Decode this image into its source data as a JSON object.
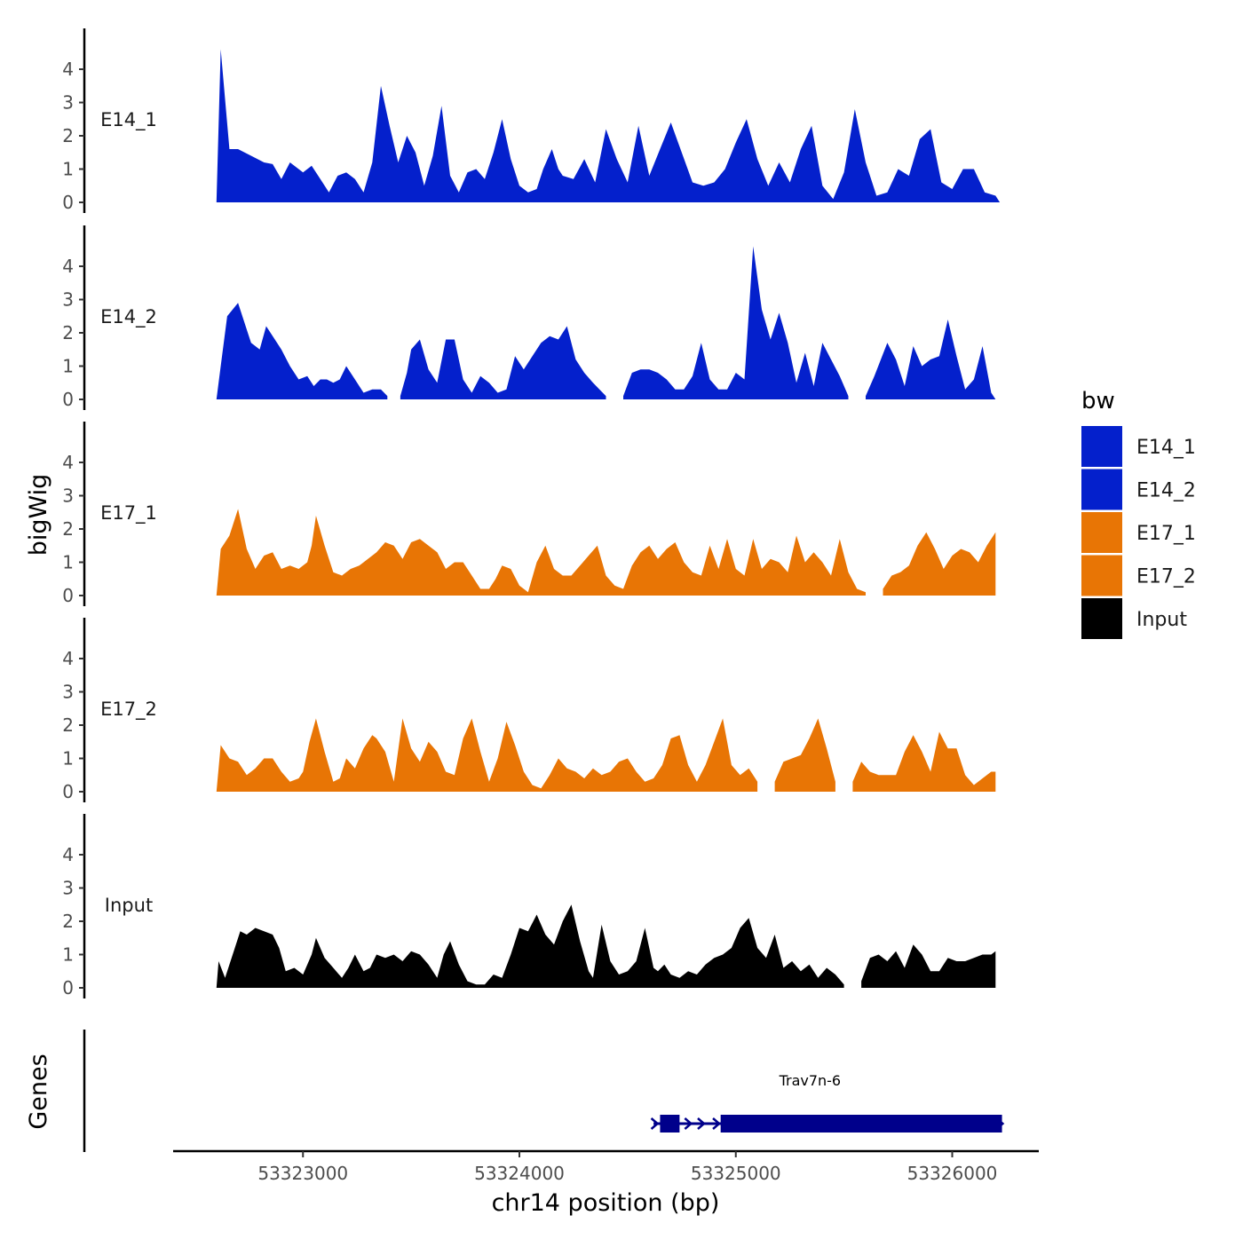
{
  "chart_data": {
    "type": "area",
    "y_axis_title": "bigWig",
    "gene_axis_title": "Genes",
    "x_axis_title": "chr14 position (bp)",
    "xlim": [
      53322400,
      53326400
    ],
    "ylim": [
      0,
      4.8
    ],
    "y_ticks": [
      0,
      1,
      2,
      3,
      4
    ],
    "x_ticks": [
      {
        "value": 53323000,
        "label": "53323000"
      },
      {
        "value": 53324000,
        "label": "53324000"
      },
      {
        "value": 53325000,
        "label": "53325000"
      },
      {
        "value": 53326000,
        "label": "53326000"
      }
    ],
    "legend": {
      "title": "bw",
      "position": "right",
      "entries": [
        {
          "label": "E14_1",
          "color": "#0420CC"
        },
        {
          "label": "E14_2",
          "color": "#0420CC"
        },
        {
          "label": "E17_1",
          "color": "#E87505"
        },
        {
          "label": "E17_2",
          "color": "#E87505"
        },
        {
          "label": "Input",
          "color": "#000000"
        }
      ]
    },
    "series": [
      {
        "name": "E14_1",
        "label": "E14_1",
        "color": "#0420CC",
        "x": [
          53322600,
          53322620,
          53322660,
          53322700,
          53322760,
          53322820,
          53322860,
          53322900,
          53322940,
          53323000,
          53323040,
          53323080,
          53323120,
          53323160,
          53323200,
          53323240,
          53323280,
          53323320,
          53323360,
          53323400,
          53323440,
          53323480,
          53323520,
          53323560,
          53323600,
          53323640,
          53323680,
          53323720,
          53323760,
          53323800,
          53323840,
          53323880,
          53323920,
          53323960,
          53324000,
          53324040,
          53324080,
          53324110,
          53324150,
          53324180,
          53324200,
          53324250,
          53324300,
          53324350,
          53324400,
          53324450,
          53324500,
          53324550,
          53324600,
          53324650,
          53324700,
          53324750,
          53324800,
          53324850,
          53324900,
          53324950,
          53325000,
          53325050,
          53325100,
          53325150,
          53325200,
          53325250,
          53325300,
          53325350,
          53325400,
          53325450,
          53325500,
          53325550,
          53325600,
          53325650,
          53325700,
          53325750,
          53325800,
          53325850,
          53325900,
          53325950,
          53326000,
          53326050,
          53326100,
          53326150,
          53326200,
          53326220
        ],
        "values": [
          0,
          4.6,
          1.6,
          1.6,
          1.4,
          1.2,
          1.15,
          0.7,
          1.2,
          0.9,
          1.1,
          0.7,
          0.3,
          0.8,
          0.9,
          0.7,
          0.3,
          1.2,
          3.5,
          2.3,
          1.2,
          2.0,
          1.5,
          0.5,
          1.4,
          2.9,
          0.8,
          0.3,
          0.9,
          1.0,
          0.7,
          1.5,
          2.5,
          1.3,
          0.5,
          0.3,
          0.4,
          1.0,
          1.6,
          1.0,
          0.8,
          0.7,
          1.3,
          0.6,
          2.2,
          1.3,
          0.6,
          2.3,
          0.8,
          1.6,
          2.4,
          1.5,
          0.6,
          0.5,
          0.6,
          1.0,
          1.8,
          2.5,
          1.3,
          0.5,
          1.2,
          0.6,
          1.6,
          2.3,
          0.5,
          0.1,
          0.9,
          2.8,
          1.2,
          0.2,
          0.3,
          1.0,
          0.8,
          1.9,
          2.2,
          0.6,
          0.4,
          1.0,
          1.0,
          0.3,
          0.2,
          0
        ]
      },
      {
        "name": "E14_2",
        "label": "E14_2",
        "color": "#0420CC",
        "x": [
          53322600,
          53322620,
          53322650,
          53322700,
          53322760,
          53322800,
          53322830,
          53322870,
          53322900,
          53322940,
          53322980,
          53323020,
          53323050,
          53323080,
          53323110,
          53323140,
          53323170,
          53323200,
          53323240,
          53323280,
          53323320,
          53323360,
          53323390,
          53323420,
          53323450,
          53323480,
          53323500,
          53323540,
          53323580,
          53323620,
          53323660,
          53323700,
          53323740,
          53323780,
          53323820,
          53323860,
          53323900,
          53323940,
          53323980,
          53324020,
          53324060,
          53324100,
          53324140,
          53324180,
          53324220,
          53324260,
          53324300,
          53324340,
          53324370,
          53324400,
          53324440,
          53324480,
          53324520,
          53324560,
          53324600,
          53324640,
          53324680,
          53324720,
          53324760,
          53324800,
          53324840,
          53324880,
          53324920,
          53324960,
          53325000,
          53325040,
          53325080,
          53325120,
          53325160,
          53325200,
          53325240,
          53325280,
          53325320,
          53325360,
          53325400,
          53325440,
          53325480,
          53325520,
          53325560,
          53325600,
          53325640,
          53325700,
          53325740,
          53325780,
          53325820,
          53325860,
          53325900,
          53325940,
          53325980,
          53326020,
          53326060,
          53326100,
          53326140,
          53326180,
          53326200
        ],
        "values": [
          0,
          1.0,
          2.5,
          2.9,
          1.7,
          1.5,
          2.2,
          1.8,
          1.5,
          1.0,
          0.6,
          0.7,
          0.4,
          0.6,
          0.6,
          0.5,
          0.6,
          1.0,
          0.6,
          0.2,
          0.3,
          0.3,
          0.1,
          null,
          0.1,
          0.8,
          1.5,
          1.8,
          0.9,
          0.5,
          1.8,
          1.8,
          0.6,
          0.2,
          0.7,
          0.5,
          0.2,
          0.3,
          1.3,
          0.9,
          1.3,
          1.7,
          1.9,
          1.8,
          2.2,
          1.2,
          0.8,
          0.5,
          0.3,
          0.1,
          null,
          0.1,
          0.8,
          0.9,
          0.9,
          0.8,
          0.6,
          0.3,
          0.3,
          0.7,
          1.7,
          0.6,
          0.3,
          0.3,
          0.8,
          0.6,
          4.6,
          2.7,
          1.8,
          2.6,
          1.7,
          0.5,
          1.4,
          0.4,
          1.7,
          1.2,
          0.7,
          0.1,
          null,
          0.1,
          0.7,
          1.7,
          1.2,
          0.4,
          1.6,
          1.0,
          1.2,
          1.3,
          2.4,
          1.3,
          0.3,
          0.6,
          1.6,
          0.2,
          0
        ]
      },
      {
        "name": "E17_1",
        "label": "E17_1",
        "color": "#E87505",
        "x": [
          53322600,
          53322620,
          53322660,
          53322700,
          53322740,
          53322780,
          53322820,
          53322860,
          53322900,
          53322940,
          53322980,
          53323020,
          53323040,
          53323060,
          53323100,
          53323140,
          53323180,
          53323220,
          53323260,
          53323300,
          53323340,
          53323380,
          53323420,
          53323460,
          53323500,
          53323540,
          53323580,
          53323620,
          53323660,
          53323700,
          53323740,
          53323780,
          53323820,
          53323860,
          53323890,
          53323920,
          53323960,
          53324000,
          53324040,
          53324080,
          53324120,
          53324160,
          53324200,
          53324240,
          53324280,
          53324320,
          53324360,
          53324400,
          53324440,
          53324480,
          53324520,
          53324560,
          53324600,
          53324640,
          53324680,
          53324720,
          53324760,
          53324800,
          53324840,
          53324880,
          53324920,
          53324960,
          53325000,
          53325040,
          53325080,
          53325120,
          53325160,
          53325200,
          53325240,
          53325280,
          53325320,
          53325360,
          53325400,
          53325440,
          53325480,
          53325520,
          53325560,
          53325600,
          53325640,
          53325680,
          53325720,
          53325760,
          53325800,
          53325840,
          53325880,
          53325920,
          53325960,
          53326000,
          53326040,
          53326080,
          53326120,
          53326160,
          53326200
        ],
        "values": [
          0,
          1.4,
          1.8,
          2.6,
          1.4,
          0.8,
          1.2,
          1.3,
          0.8,
          0.9,
          0.8,
          1.0,
          1.5,
          2.4,
          1.5,
          0.7,
          0.6,
          0.8,
          0.9,
          1.1,
          1.3,
          1.6,
          1.5,
          1.1,
          1.6,
          1.7,
          1.5,
          1.3,
          0.8,
          1.0,
          1.0,
          0.6,
          0.2,
          0.2,
          0.5,
          0.9,
          0.8,
          0.3,
          0.1,
          1.0,
          1.5,
          0.8,
          0.6,
          0.6,
          0.9,
          1.2,
          1.5,
          0.6,
          0.3,
          0.2,
          0.9,
          1.3,
          1.5,
          1.1,
          1.4,
          1.6,
          1.0,
          0.7,
          0.6,
          1.5,
          0.8,
          1.7,
          0.8,
          0.6,
          1.7,
          0.8,
          1.1,
          1.0,
          0.7,
          1.8,
          1.0,
          1.3,
          1.0,
          0.6,
          1.7,
          0.7,
          0.2,
          0.1,
          null,
          0.2,
          0.6,
          0.7,
          0.9,
          1.5,
          1.9,
          1.4,
          0.8,
          1.2,
          1.4,
          1.3,
          1.0,
          1.5,
          1.9
        ]
      },
      {
        "name": "E17_2",
        "label": "E17_2",
        "color": "#E87505",
        "x": [
          53322600,
          53322620,
          53322660,
          53322700,
          53322740,
          53322780,
          53322820,
          53322860,
          53322900,
          53322940,
          53322980,
          53323000,
          53323030,
          53323060,
          53323100,
          53323140,
          53323170,
          53323200,
          53323240,
          53323280,
          53323320,
          53323340,
          53323380,
          53323420,
          53323460,
          53323500,
          53323540,
          53323580,
          53323620,
          53323660,
          53323700,
          53323740,
          53323780,
          53323820,
          53323860,
          53323900,
          53323940,
          53323980,
          53324020,
          53324060,
          53324100,
          53324140,
          53324180,
          53324220,
          53324260,
          53324300,
          53324340,
          53324380,
          53324420,
          53324460,
          53324500,
          53324540,
          53324580,
          53324620,
          53324660,
          53324700,
          53324740,
          53324780,
          53324820,
          53324860,
          53324900,
          53324940,
          53324980,
          53325020,
          53325060,
          53325100,
          53325140,
          53325180,
          53325220,
          53325260,
          53325300,
          53325340,
          53325380,
          53325420,
          53325460,
          53325500,
          53325540,
          53325580,
          53325620,
          53325660,
          53325700,
          53325740,
          53325780,
          53325820,
          53325860,
          53325900,
          53325940,
          53325980,
          53326020,
          53326060,
          53326100,
          53326140,
          53326180,
          53326200
        ],
        "values": [
          0,
          1.4,
          1.0,
          0.9,
          0.5,
          0.7,
          1.0,
          1.0,
          0.6,
          0.3,
          0.4,
          0.6,
          1.5,
          2.2,
          1.2,
          0.3,
          0.4,
          1.0,
          0.7,
          1.3,
          1.7,
          1.6,
          1.2,
          0.3,
          2.2,
          1.3,
          0.9,
          1.5,
          1.2,
          0.6,
          0.5,
          1.6,
          2.2,
          1.2,
          0.3,
          1.0,
          2.1,
          1.4,
          0.6,
          0.2,
          0.1,
          0.5,
          1.0,
          0.7,
          0.6,
          0.4,
          0.7,
          0.5,
          0.6,
          0.9,
          1.0,
          0.6,
          0.3,
          0.4,
          0.8,
          1.6,
          1.7,
          0.8,
          0.3,
          0.8,
          1.5,
          2.2,
          0.8,
          0.5,
          0.7,
          0.3,
          null,
          0.3,
          0.9,
          1.0,
          1.1,
          1.6,
          2.2,
          1.3,
          0.3,
          null,
          0.3,
          0.9,
          0.6,
          0.5,
          0.5,
          0.5,
          1.2,
          1.7,
          1.2,
          0.6,
          1.8,
          1.3,
          1.3,
          0.5,
          0.2,
          0.4,
          0.6,
          0.6
        ]
      },
      {
        "name": "Input",
        "label": "Input",
        "color": "#000000",
        "x": [
          53322600,
          53322610,
          53322640,
          53322680,
          53322710,
          53322740,
          53322780,
          53322820,
          53322860,
          53322890,
          53322920,
          53322960,
          53323000,
          53323040,
          53323060,
          53323100,
          53323140,
          53323180,
          53323210,
          53323240,
          53323280,
          53323310,
          53323340,
          53323380,
          53323420,
          53323460,
          53323500,
          53323540,
          53323580,
          53323620,
          53323650,
          53323680,
          53323720,
          53323760,
          53323800,
          53323840,
          53323880,
          53323920,
          53323960,
          53324000,
          53324040,
          53324080,
          53324120,
          53324160,
          53324200,
          53324240,
          53324280,
          53324320,
          53324340,
          53324380,
          53324420,
          53324460,
          53324500,
          53324540,
          53324580,
          53324620,
          53324640,
          53324670,
          53324700,
          53324740,
          53324780,
          53324820,
          53324860,
          53324900,
          53324940,
          53324980,
          53325020,
          53325060,
          53325100,
          53325140,
          53325180,
          53325220,
          53325260,
          53325300,
          53325340,
          53325380,
          53325420,
          53325460,
          53325500,
          53325540,
          53325580,
          53325620,
          53325660,
          53325700,
          53325740,
          53325780,
          53325820,
          53325860,
          53325900,
          53325940,
          53325980,
          53326020,
          53326060,
          53326100,
          53326140,
          53326180,
          53326200
        ],
        "values": [
          0,
          0.8,
          0.3,
          1.1,
          1.7,
          1.6,
          1.8,
          1.7,
          1.6,
          1.2,
          0.5,
          0.6,
          0.4,
          1.0,
          1.5,
          0.9,
          0.6,
          0.3,
          0.6,
          1.0,
          0.5,
          0.6,
          1.0,
          0.9,
          1.0,
          0.8,
          1.1,
          1.0,
          0.7,
          0.3,
          1.0,
          1.4,
          0.7,
          0.2,
          0.1,
          0.1,
          0.4,
          0.3,
          1.0,
          1.8,
          1.7,
          2.2,
          1.6,
          1.3,
          2.0,
          2.5,
          1.4,
          0.5,
          0.3,
          1.9,
          0.8,
          0.4,
          0.5,
          0.8,
          1.8,
          0.6,
          0.5,
          0.7,
          0.4,
          0.3,
          0.5,
          0.4,
          0.7,
          0.9,
          1.0,
          1.2,
          1.8,
          2.1,
          1.2,
          0.9,
          1.6,
          0.6,
          0.8,
          0.5,
          0.7,
          0.3,
          0.6,
          0.4,
          0.1,
          null,
          0.2,
          0.9,
          1.0,
          0.8,
          1.1,
          0.6,
          1.3,
          1.0,
          0.5,
          0.5,
          0.9,
          0.8,
          0.8,
          0.9,
          1.0,
          1.0,
          1.1
        ]
      }
    ],
    "genes": [
      {
        "name": "Trav7n-6",
        "start": 53324620,
        "end": 53326230,
        "exons": [
          [
            53324650,
            53324740
          ],
          [
            53324930,
            53326230
          ]
        ],
        "color": "#00008B"
      }
    ]
  }
}
